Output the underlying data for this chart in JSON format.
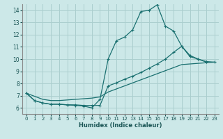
{
  "xlabel": "Humidex (Indice chaleur)",
  "bg_color": "#cce8e8",
  "grid_color": "#aacece",
  "line_color": "#1a7070",
  "xlim": [
    -0.5,
    23.5
  ],
  "ylim": [
    5.5,
    14.5
  ],
  "xticks": [
    0,
    1,
    2,
    3,
    4,
    5,
    6,
    7,
    8,
    9,
    10,
    11,
    12,
    13,
    14,
    15,
    16,
    17,
    18,
    19,
    20,
    21,
    22,
    23
  ],
  "yticks": [
    6,
    7,
    8,
    9,
    10,
    11,
    12,
    13,
    14
  ],
  "line1_x": [
    0,
    1,
    2,
    3,
    4,
    5,
    6,
    7,
    8,
    9,
    10,
    11,
    12,
    13,
    14,
    15,
    16,
    17,
    18,
    19,
    20,
    21,
    22
  ],
  "line1_y": [
    7.2,
    6.6,
    6.4,
    6.3,
    6.3,
    6.25,
    6.2,
    6.15,
    6.0,
    6.7,
    10.0,
    11.5,
    11.8,
    12.4,
    13.9,
    14.0,
    14.45,
    12.7,
    12.3,
    11.05,
    10.3,
    10.0,
    9.75
  ],
  "line2_x": [
    0,
    1,
    2,
    3,
    4,
    5,
    6,
    7,
    8,
    9,
    10,
    11,
    12,
    13,
    14,
    15,
    16,
    17,
    18,
    19,
    20,
    21,
    22,
    23
  ],
  "line2_y": [
    7.2,
    6.6,
    6.4,
    6.3,
    6.3,
    6.25,
    6.25,
    6.2,
    6.2,
    6.2,
    7.8,
    8.05,
    8.35,
    8.6,
    8.9,
    9.25,
    9.6,
    10.0,
    10.55,
    11.05,
    10.2,
    10.0,
    9.8,
    9.75
  ],
  "line3_x": [
    0,
    1,
    2,
    3,
    4,
    5,
    6,
    7,
    8,
    9,
    10,
    11,
    12,
    13,
    14,
    15,
    16,
    17,
    18,
    19,
    20,
    21,
    22,
    23
  ],
  "line3_y": [
    7.2,
    6.95,
    6.7,
    6.6,
    6.6,
    6.65,
    6.7,
    6.75,
    6.8,
    6.9,
    7.3,
    7.55,
    7.8,
    8.05,
    8.3,
    8.55,
    8.8,
    9.05,
    9.3,
    9.55,
    9.6,
    9.65,
    9.7,
    9.75
  ]
}
